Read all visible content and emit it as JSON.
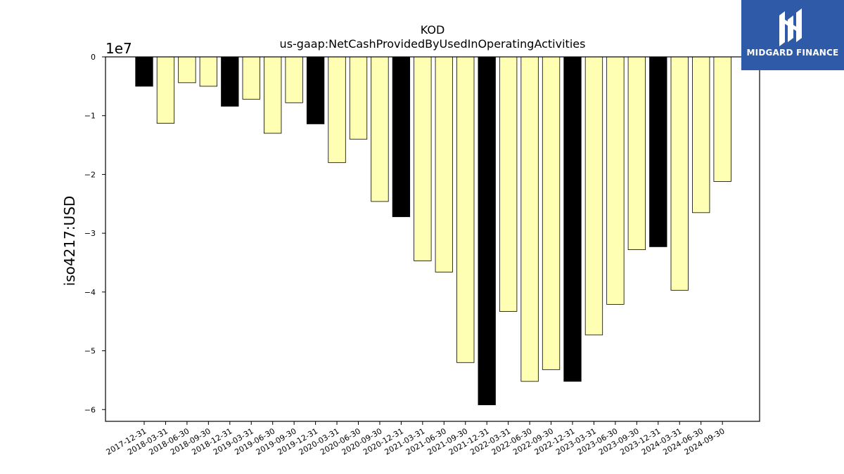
{
  "chart_data": {
    "type": "bar",
    "title": "KOD",
    "subtitle": "us-gaap:NetCashProvidedByUsedInOperatingActivities",
    "ylabel": "iso4217:USD",
    "xlabel": "",
    "y_multiplier_label": "1e7",
    "ylim": [
      -6.2,
      0
    ],
    "yticks": [
      0,
      -1,
      -2,
      -3,
      -4,
      -5,
      -6
    ],
    "ytick_labels": [
      "0",
      "−1",
      "−2",
      "−3",
      "−4",
      "−5",
      "−6"
    ],
    "categories": [
      "2017-12-31",
      "2018-03-31",
      "2018-06-30",
      "2018-09-30",
      "2018-12-31",
      "2019-03-31",
      "2019-06-30",
      "2019-09-30",
      "2019-12-31",
      "2020-03-31",
      "2020-06-30",
      "2020-09-30",
      "2020-12-31",
      "2021-03-31",
      "2021-06-30",
      "2021-09-30",
      "2021-12-31",
      "2022-03-31",
      "2022-06-30",
      "2022-09-30",
      "2022-12-31",
      "2023-03-31",
      "2023-06-30",
      "2023-09-30",
      "2023-12-31",
      "2024-03-31",
      "2024-06-30",
      "2024-09-30"
    ],
    "values": [
      -0.5,
      -1.13,
      -0.44,
      -0.5,
      -0.84,
      -0.72,
      -1.3,
      -0.78,
      -1.14,
      -1.8,
      -1.4,
      -2.46,
      -2.72,
      -3.47,
      -3.66,
      -5.2,
      -5.92,
      -4.33,
      -5.52,
      -5.32,
      -5.52,
      -4.73,
      -4.21,
      -3.28,
      -3.23,
      -3.97,
      -2.65,
      -2.12
    ],
    "fiscal_year_end": [
      true,
      false,
      false,
      false,
      true,
      false,
      false,
      false,
      true,
      false,
      false,
      false,
      true,
      false,
      false,
      false,
      true,
      false,
      false,
      false,
      true,
      false,
      false,
      false,
      true,
      false,
      false,
      false
    ],
    "colors": {
      "year_end": "#000000",
      "quarter": "#ffffb3",
      "edge": "#000000"
    },
    "grid": false,
    "legend": "none"
  },
  "logo": {
    "text": "MIDGARD FINANCE",
    "background": "#2e5aa8"
  }
}
